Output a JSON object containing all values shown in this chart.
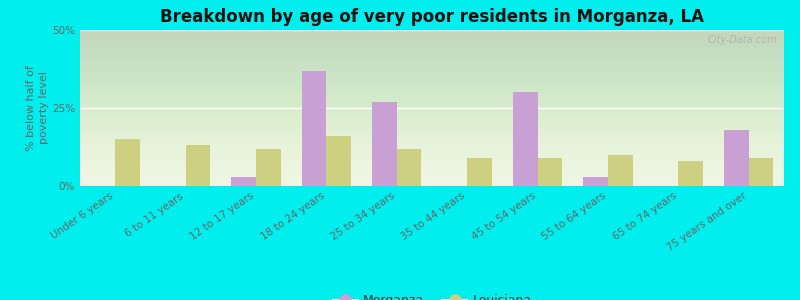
{
  "categories": [
    "Under 6 years",
    "6 to 11 years",
    "12 to 17 years",
    "18 to 24 years",
    "25 to 34 years",
    "35 to 44 years",
    "45 to 54 years",
    "55 to 64 years",
    "65 to 74 years",
    "75 years and over"
  ],
  "morganza": [
    0,
    0,
    3,
    37,
    27,
    0,
    30,
    3,
    0,
    18
  ],
  "louisiana": [
    15,
    13,
    12,
    16,
    12,
    9,
    9,
    10,
    8,
    9
  ],
  "morganza_color": "#c8a0d4",
  "louisiana_color": "#ccd080",
  "background_color": "#00eeee",
  "title": "Breakdown by age of very poor residents in Morganza, LA",
  "ylabel": "% below half of\npoverty level",
  "ylim": [
    0,
    50
  ],
  "yticks": [
    0,
    25,
    50
  ],
  "ytick_labels": [
    "0%",
    "25%",
    "50%"
  ],
  "bar_width": 0.35,
  "title_fontsize": 12,
  "axis_fontsize": 8,
  "tick_fontsize": 7.5,
  "legend_fontsize": 9,
  "watermark": "City-Data.com"
}
